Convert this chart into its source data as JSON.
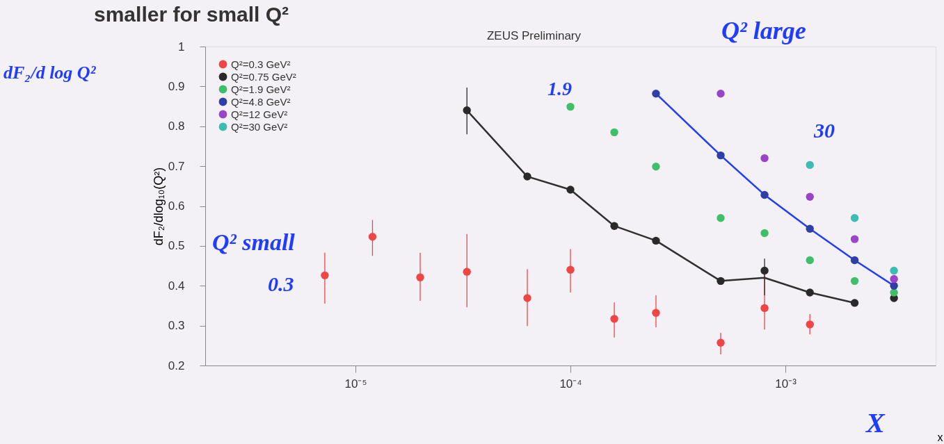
{
  "chart_data": {
    "type": "scatter",
    "title": "smaller for small Q²",
    "subtitle": "ZEUS Preliminary",
    "xlabel": "x",
    "ylabel": "dF₂/dlog₁₀(Q²)",
    "log": "x",
    "xlim": [
      2e-06,
      0.005
    ],
    "ylim": [
      0.2,
      1.0
    ],
    "xticks": [
      {
        "value": 1e-05,
        "label": "10⁻⁵"
      },
      {
        "value": 0.0001,
        "label": "10⁻⁴"
      },
      {
        "value": 0.001,
        "label": "10⁻³"
      }
    ],
    "yticks": [
      0.2,
      0.3,
      0.4,
      0.5,
      0.6,
      0.7,
      0.8,
      0.9,
      1
    ],
    "legend": "top left",
    "grid": false,
    "marker": "circle",
    "annotations": [
      "dF₂/d log Q²",
      "Q² small",
      "0.3",
      "1.9",
      "Q² large",
      "30",
      "X"
    ],
    "series": [
      {
        "name": "Q²=0.3 GeV²",
        "color": "#f04545",
        "x": [
          7.2e-06,
          1.2e-05,
          2e-05,
          3.3e-05,
          6.3e-05,
          0.0001,
          0.00016,
          0.00025,
          0.0005,
          0.0008,
          0.0013
        ],
        "values": [
          0.426,
          0.523,
          0.421,
          0.435,
          0.369,
          0.44,
          0.317,
          0.332,
          0.257,
          0.344,
          0.303
        ],
        "errors": [
          [
            0.355,
            0.483
          ],
          [
            0.475,
            0.565
          ],
          [
            0.362,
            0.483
          ],
          [
            0.346,
            0.53
          ],
          [
            0.299,
            0.442
          ],
          [
            0.383,
            0.492
          ],
          [
            0.27,
            0.358
          ],
          [
            0.296,
            0.376
          ],
          [
            0.228,
            0.282
          ],
          [
            0.29,
            0.447
          ],
          [
            0.278,
            0.329
          ]
        ]
      },
      {
        "name": "Q²=0.75 GeV²",
        "color": "#2a2a2a",
        "x": [
          3.3e-05,
          6.3e-05,
          0.0001,
          0.00016,
          0.00025,
          0.0005,
          0.0008,
          0.0013,
          0.0021,
          0.0032
        ],
        "values": [
          0.84,
          0.674,
          0.641,
          0.55,
          0.513,
          0.412,
          0.438,
          0.383,
          0.357,
          0.369
        ],
        "errors": [
          [
            0.78,
            0.897
          ],
          null,
          null,
          null,
          null,
          null,
          [
            0.376,
            0.468
          ],
          null,
          null,
          null
        ]
      },
      {
        "name": "Q²=1.9 GeV²",
        "color": "#3fbf6a",
        "x": [
          0.0001,
          0.00016,
          0.00025,
          0.0005,
          0.0008,
          0.0013,
          0.0021,
          0.0032
        ],
        "values": [
          0.849,
          0.785,
          0.699,
          0.57,
          0.532,
          0.464,
          0.412,
          0.383
        ]
      },
      {
        "name": "Q²=4.8 GeV²",
        "color": "#2e3fa8",
        "x": [
          0.00025,
          0.0005,
          0.0008,
          0.0013,
          0.0021,
          0.0032
        ],
        "values": [
          0.882,
          0.727,
          0.628,
          0.543,
          0.464,
          0.4
        ]
      },
      {
        "name": "Q²=12 GeV²",
        "color": "#9a45c8",
        "x": [
          0.0005,
          0.0008,
          0.0013,
          0.0021,
          0.0032
        ],
        "values": [
          0.882,
          0.72,
          0.623,
          0.517,
          0.417
        ]
      },
      {
        "name": "Q²=30 GeV²",
        "color": "#3bbcb4",
        "x": [
          0.0013,
          0.0021,
          0.0032
        ],
        "values": [
          0.703,
          0.57,
          0.438
        ]
      },
      {
        "type": "line",
        "marker": "none",
        "line_style": "solid",
        "color": "#303030",
        "x": [
          3.3e-05,
          6.3e-05,
          0.0001,
          0.00016,
          0.00025,
          0.0005,
          0.0008,
          0.0013,
          0.0021
        ],
        "values": [
          0.84,
          0.674,
          0.641,
          0.55,
          0.513,
          0.412,
          0.42,
          0.383,
          0.357
        ]
      },
      {
        "type": "line",
        "marker": "none",
        "line_style": "solid",
        "color": "#1f3cff",
        "x": [
          0.00025,
          0.0005,
          0.0008,
          0.0013,
          0.0021,
          0.0032
        ],
        "values": [
          0.882,
          0.727,
          0.628,
          0.543,
          0.464,
          0.4
        ]
      }
    ]
  }
}
